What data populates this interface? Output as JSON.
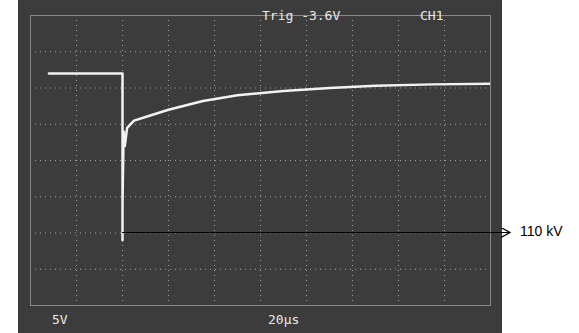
{
  "chart_data": {
    "type": "line",
    "xlabel": "20μs",
    "ylabel": "5V",
    "annotations": [
      {
        "text": "Trig -3.6V"
      },
      {
        "text": "CH1"
      },
      {
        "text": "110 kV",
        "x": 40,
        "y": -10
      }
    ],
    "x": [
      8,
      40,
      40,
      40,
      40,
      40.5,
      41,
      42,
      45,
      50,
      60,
      75,
      90,
      110,
      130,
      150,
      175,
      200
    ],
    "values": [
      12,
      12,
      -11,
      6,
      -6,
      4,
      2,
      4.5,
      5.5,
      6,
      7,
      8.2,
      9,
      9.6,
      10,
      10.3,
      10.5,
      10.6
    ],
    "color": "#f2f2f2",
    "xlim": [
      0,
      200
    ],
    "xticks": [
      0,
      20,
      40,
      60,
      80,
      100,
      120,
      140,
      160,
      180,
      200
    ],
    "ylim": [
      -20,
      20
    ],
    "yticks": [
      -20,
      -15,
      -10,
      -5,
      0,
      5,
      10,
      15,
      20
    ],
    "grid": true,
    "tick_labels": false
  }
}
